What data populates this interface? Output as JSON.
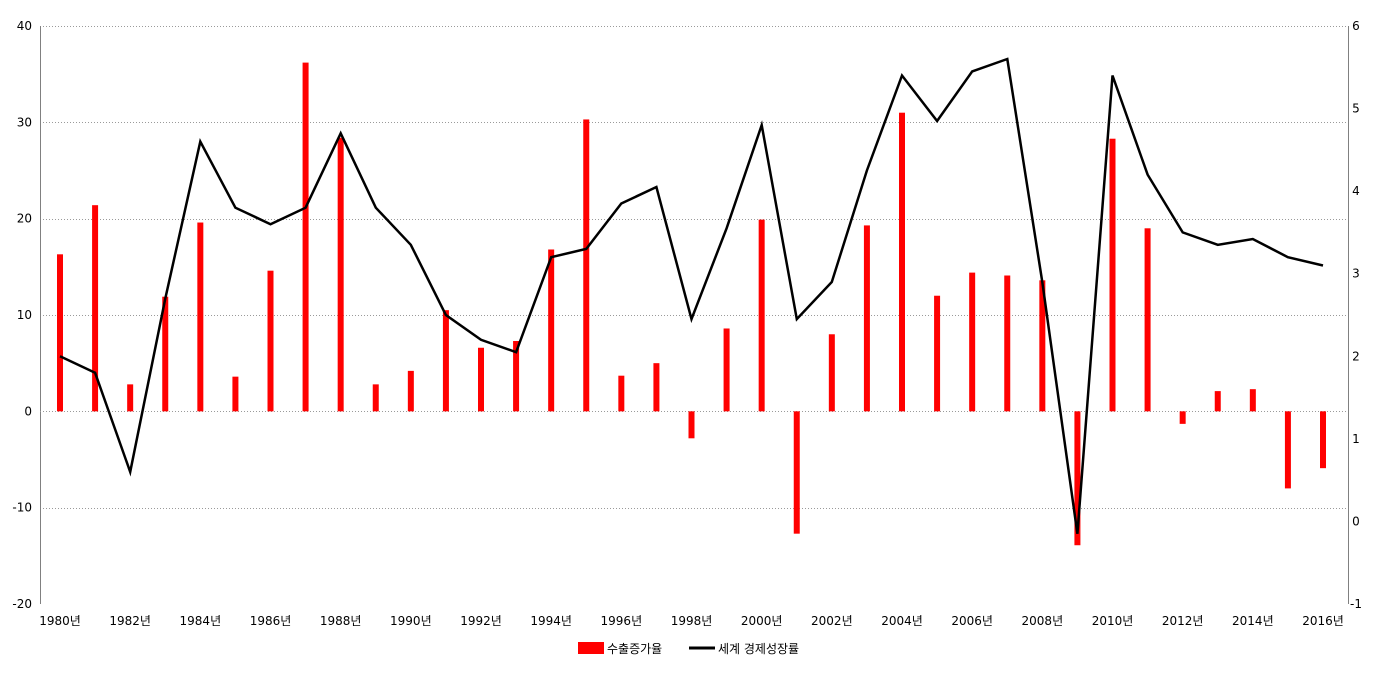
{
  "chart_data": {
    "type": "bar+line",
    "categories": [
      "1980년",
      "1981년",
      "1982년",
      "1983년",
      "1984년",
      "1985년",
      "1986년",
      "1987년",
      "1988년",
      "1989년",
      "1990년",
      "1991년",
      "1992년",
      "1993년",
      "1994년",
      "1995년",
      "1996년",
      "1997년",
      "1998년",
      "1999년",
      "2000년",
      "2001년",
      "2002년",
      "2003년",
      "2004년",
      "2005년",
      "2006년",
      "2007년",
      "2008년",
      "2009년",
      "2010년",
      "2011년",
      "2012년",
      "2013년",
      "2014년",
      "2015년",
      "2016년"
    ],
    "x_tick_labels": [
      "1980년",
      "1982년",
      "1984년",
      "1986년",
      "1988년",
      "1990년",
      "1992년",
      "1994년",
      "1996년",
      "1998년",
      "2000년",
      "2002년",
      "2004년",
      "2006년",
      "2008년",
      "2010년",
      "2012년",
      "2014년",
      "2016년"
    ],
    "y_left": {
      "min": -20,
      "max": 40,
      "ticks": [
        -20,
        -10,
        0,
        10,
        20,
        30,
        40
      ]
    },
    "y_right": {
      "min": -1,
      "max": 6,
      "ticks": [
        -1,
        0,
        1,
        2,
        3,
        4,
        5,
        6
      ]
    },
    "series": [
      {
        "name": "수출증가율",
        "kind": "bar",
        "axis": "left",
        "color": "#ff0000",
        "values": [
          16.3,
          21.4,
          2.8,
          11.9,
          19.6,
          3.6,
          14.6,
          36.2,
          28.4,
          2.8,
          4.2,
          10.5,
          6.6,
          7.3,
          16.8,
          30.3,
          3.7,
          5.0,
          -2.8,
          8.6,
          19.9,
          -12.7,
          8.0,
          19.3,
          31.0,
          12.0,
          14.4,
          14.1,
          13.6,
          -13.9,
          28.3,
          19.0,
          -1.3,
          2.1,
          2.3,
          -8.0,
          -5.9
        ]
      },
      {
        "name": "세계 경제성장률",
        "kind": "line",
        "axis": "right",
        "color": "#000000",
        "values": [
          2.0,
          1.8,
          0.6,
          2.7,
          4.6,
          3.8,
          3.6,
          3.8,
          4.7,
          3.8,
          3.35,
          2.5,
          2.2,
          2.05,
          3.2,
          3.3,
          3.85,
          4.05,
          2.45,
          3.55,
          4.8,
          2.45,
          2.9,
          4.25,
          5.4,
          4.85,
          5.45,
          5.6,
          2.9,
          -0.15,
          5.4,
          4.2,
          3.5,
          3.35,
          3.42,
          3.2,
          3.1
        ]
      }
    ],
    "legend": {
      "placement": "bottom"
    }
  }
}
